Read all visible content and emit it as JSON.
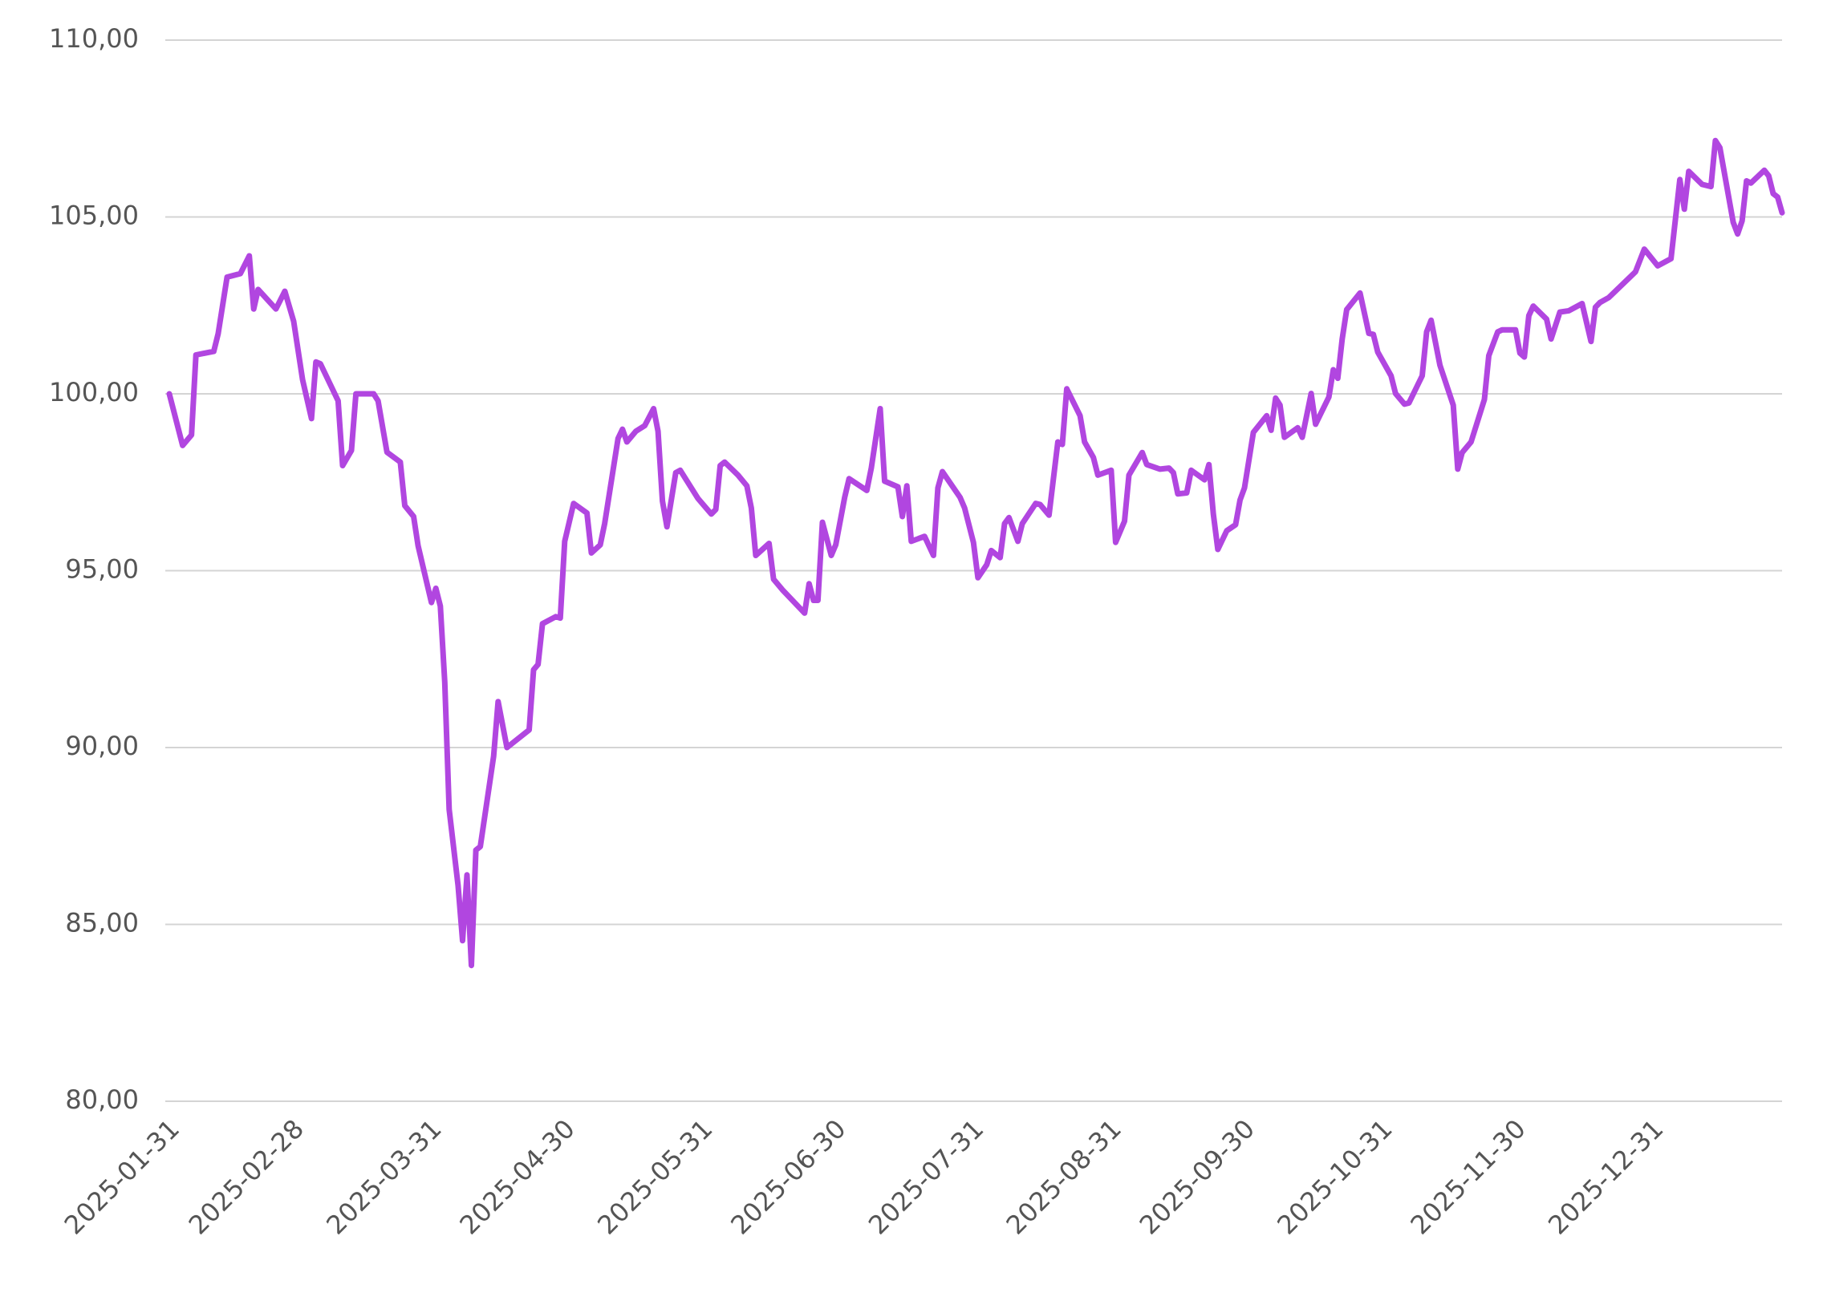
{
  "chart_data": {
    "type": "line",
    "x": [
      "2025-01-31",
      "2025-02-03",
      "2025-02-05",
      "2025-02-06",
      "2025-02-10",
      "2025-02-11",
      "2025-02-13",
      "2025-02-16",
      "2025-02-18",
      "2025-02-19",
      "2025-02-20",
      "2025-02-24",
      "2025-02-26",
      "2025-02-28",
      "2025-03-02",
      "2025-03-04",
      "2025-03-05",
      "2025-03-06",
      "2025-03-10",
      "2025-03-11",
      "2025-03-13",
      "2025-03-14",
      "2025-03-18",
      "2025-03-19",
      "2025-03-21",
      "2025-03-24",
      "2025-03-25",
      "2025-03-27",
      "2025-03-28",
      "2025-03-31",
      "2025-04-01",
      "2025-04-02",
      "2025-04-03",
      "2025-04-04",
      "2025-04-06",
      "2025-04-07",
      "2025-04-08",
      "2025-04-09",
      "2025-04-10",
      "2025-04-11",
      "2025-04-14",
      "2025-04-15",
      "2025-04-17",
      "2025-04-22",
      "2025-04-23",
      "2025-04-24",
      "2025-04-25",
      "2025-04-28",
      "2025-04-29",
      "2025-04-30",
      "2025-05-02",
      "2025-05-05",
      "2025-05-06",
      "2025-05-08",
      "2025-05-09",
      "2025-05-12",
      "2025-05-13",
      "2025-05-14",
      "2025-05-16",
      "2025-05-18",
      "2025-05-20",
      "2025-05-21",
      "2025-05-22",
      "2025-05-23",
      "2025-05-25",
      "2025-05-26",
      "2025-05-30",
      "2025-06-02",
      "2025-06-03",
      "2025-06-04",
      "2025-06-05",
      "2025-06-08",
      "2025-06-10",
      "2025-06-11",
      "2025-06-12",
      "2025-06-15",
      "2025-06-16",
      "2025-06-18",
      "2025-06-23",
      "2025-06-24",
      "2025-06-25",
      "2025-06-26",
      "2025-06-27",
      "2025-06-29",
      "2025-06-30",
      "2025-07-02",
      "2025-07-03",
      "2025-07-07",
      "2025-07-08",
      "2025-07-10",
      "2025-07-11",
      "2025-07-14",
      "2025-07-15",
      "2025-07-16",
      "2025-07-17",
      "2025-07-20",
      "2025-07-22",
      "2025-07-23",
      "2025-07-24",
      "2025-07-28",
      "2025-07-29",
      "2025-07-31",
      "2025-08-01",
      "2025-08-03",
      "2025-08-04",
      "2025-08-06",
      "2025-08-07",
      "2025-08-08",
      "2025-08-10",
      "2025-08-11",
      "2025-08-14",
      "2025-08-15",
      "2025-08-17",
      "2025-08-19",
      "2025-08-20",
      "2025-08-21",
      "2025-08-24",
      "2025-08-25",
      "2025-08-27",
      "2025-08-28",
      "2025-08-31",
      "2025-09-01",
      "2025-09-03",
      "2025-09-04",
      "2025-09-07",
      "2025-09-08",
      "2025-09-11",
      "2025-09-13",
      "2025-09-14",
      "2025-09-15",
      "2025-09-17",
      "2025-09-18",
      "2025-09-21",
      "2025-09-22",
      "2025-09-23",
      "2025-09-24",
      "2025-09-26",
      "2025-09-28",
      "2025-09-29",
      "2025-09-30",
      "2025-10-02",
      "2025-10-05",
      "2025-10-06",
      "2025-10-07",
      "2025-10-08",
      "2025-10-09",
      "2025-10-12",
      "2025-10-13",
      "2025-10-15",
      "2025-10-16",
      "2025-10-19",
      "2025-10-20",
      "2025-10-21",
      "2025-10-22",
      "2025-10-23",
      "2025-10-26",
      "2025-10-28",
      "2025-10-29",
      "2025-10-30",
      "2025-11-02",
      "2025-11-03",
      "2025-11-05",
      "2025-11-06",
      "2025-11-09",
      "2025-11-10",
      "2025-11-11",
      "2025-11-13",
      "2025-11-16",
      "2025-11-17",
      "2025-11-18",
      "2025-11-20",
      "2025-11-23",
      "2025-11-24",
      "2025-11-26",
      "2025-11-27",
      "2025-11-30",
      "2025-12-01",
      "2025-12-02",
      "2025-12-03",
      "2025-12-04",
      "2025-12-07",
      "2025-12-08",
      "2025-12-10",
      "2025-12-12",
      "2025-12-15",
      "2025-12-17",
      "2025-12-18",
      "2025-12-19",
      "2025-12-21",
      "2025-12-27",
      "2025-12-29",
      "2026-01-01",
      "2026-01-04",
      "2026-01-06",
      "2026-01-07",
      "2026-01-08",
      "2026-01-11",
      "2026-01-13",
      "2026-01-14",
      "2026-01-15",
      "2026-01-18",
      "2026-01-19",
      "2026-01-20",
      "2026-01-21",
      "2026-01-22",
      "2026-01-25",
      "2026-01-26",
      "2026-01-27",
      "2026-01-28",
      "2026-01-29"
    ],
    "values": [
      100.0,
      98.54,
      98.84,
      101.1,
      101.2,
      101.7,
      103.3,
      103.4,
      103.9,
      102.4,
      102.95,
      102.4,
      102.9,
      102.05,
      100.4,
      99.3,
      100.9,
      100.85,
      99.8,
      97.97,
      98.4,
      100.0,
      100.0,
      99.8,
      98.35,
      98.07,
      96.84,
      96.53,
      95.7,
      94.1,
      94.5,
      94.0,
      91.85,
      88.25,
      86.1,
      84.54,
      86.4,
      83.84,
      87.1,
      87.2,
      89.75,
      91.3,
      90.0,
      90.5,
      92.2,
      92.35,
      93.5,
      93.7,
      93.66,
      95.83,
      96.9,
      96.63,
      95.5,
      95.73,
      96.33,
      98.74,
      99.0,
      98.64,
      98.94,
      99.1,
      99.58,
      98.94,
      96.97,
      96.24,
      97.77,
      97.84,
      97.04,
      96.6,
      96.73,
      97.97,
      98.07,
      97.7,
      97.4,
      96.77,
      95.43,
      95.77,
      94.76,
      94.46,
      93.8,
      94.63,
      94.16,
      94.16,
      96.37,
      95.43,
      95.73,
      97.07,
      97.6,
      97.27,
      97.9,
      99.58,
      97.53,
      97.37,
      96.53,
      97.4,
      95.83,
      95.97,
      95.43,
      97.34,
      97.8,
      97.07,
      96.77,
      95.8,
      94.8,
      95.17,
      95.57,
      95.37,
      96.33,
      96.5,
      95.83,
      96.33,
      96.9,
      96.87,
      96.57,
      98.64,
      98.57,
      100.14,
      99.38,
      98.64,
      98.2,
      97.7,
      97.84,
      95.8,
      96.4,
      97.7,
      98.34,
      98.0,
      97.87,
      97.9,
      97.77,
      97.17,
      97.2,
      97.84,
      97.57,
      98.0,
      96.6,
      95.6,
      96.13,
      96.3,
      97.0,
      97.34,
      98.91,
      99.38,
      98.97,
      99.88,
      99.68,
      98.77,
      99.04,
      98.77,
      100.01,
      99.14,
      99.91,
      100.68,
      100.44,
      101.55,
      102.38,
      102.85,
      101.71,
      101.68,
      101.18,
      100.51,
      100.01,
      99.71,
      99.74,
      100.51,
      101.75,
      102.08,
      100.81,
      99.68,
      97.87,
      98.34,
      98.64,
      99.84,
      101.08,
      101.75,
      101.81,
      101.81,
      101.15,
      101.04,
      102.21,
      102.48,
      102.11,
      101.55,
      102.31,
      102.35,
      102.55,
      101.48,
      102.45,
      102.58,
      102.72,
      103.45,
      104.09,
      103.62,
      103.82,
      106.06,
      105.22,
      106.29,
      105.92,
      105.86,
      107.16,
      106.96,
      104.85,
      104.52,
      104.89,
      106.02,
      105.96,
      106.32,
      106.16,
      105.66,
      105.56,
      105.12
    ],
    "color": "#b146e0",
    "xlim": [
      "2025-01-31",
      "2026-01-29"
    ],
    "xticks": [
      "2025-01-31",
      "2025-02-28",
      "2025-03-31",
      "2025-04-30",
      "2025-05-31",
      "2025-06-30",
      "2025-07-31",
      "2025-08-31",
      "2025-09-30",
      "2025-10-31",
      "2025-11-30",
      "2025-12-31"
    ],
    "ylim": [
      80,
      110
    ],
    "yticks": [
      {
        "value": 80,
        "label": "80,00"
      },
      {
        "value": 85,
        "label": "85,00"
      },
      {
        "value": 90,
        "label": "90,00"
      },
      {
        "value": 95,
        "label": "95,00"
      },
      {
        "value": 100,
        "label": "100,00"
      },
      {
        "value": 105,
        "label": "105,00"
      },
      {
        "value": 110,
        "label": "110,00"
      }
    ],
    "grid": true
  }
}
